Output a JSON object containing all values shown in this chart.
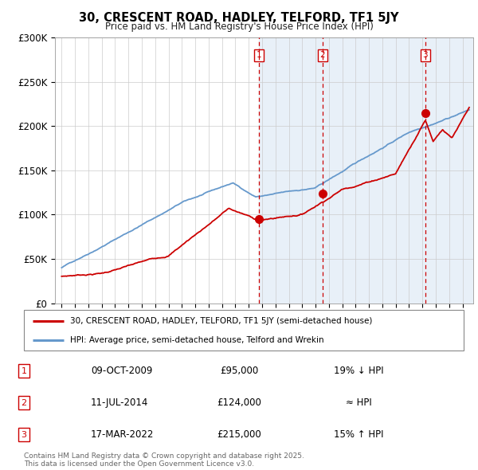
{
  "title": "30, CRESCENT ROAD, HADLEY, TELFORD, TF1 5JY",
  "subtitle": "Price paid vs. HM Land Registry's House Price Index (HPI)",
  "ylim": [
    0,
    300000
  ],
  "yticks": [
    0,
    50000,
    100000,
    150000,
    200000,
    250000,
    300000
  ],
  "ytick_labels": [
    "£0",
    "£50K",
    "£100K",
    "£150K",
    "£200K",
    "£250K",
    "£300K"
  ],
  "sale_dates_num": [
    2009.77,
    2014.53,
    2022.21
  ],
  "sale_prices": [
    95000,
    124000,
    215000
  ],
  "sale_labels": [
    "1",
    "2",
    "3"
  ],
  "sale_info": [
    {
      "num": "1",
      "date": "09-OCT-2009",
      "price": "£95,000",
      "hpi": "19% ↓ HPI"
    },
    {
      "num": "2",
      "date": "11-JUL-2014",
      "price": "£124,000",
      "hpi": "≈ HPI"
    },
    {
      "num": "3",
      "date": "17-MAR-2022",
      "price": "£215,000",
      "hpi": "15% ↑ HPI"
    }
  ],
  "legend_entries": [
    {
      "label": "30, CRESCENT ROAD, HADLEY, TELFORD, TF1 5JY (semi-detached house)",
      "color": "#cc0000"
    },
    {
      "label": "HPI: Average price, semi-detached house, Telford and Wrekin",
      "color": "#6699cc"
    }
  ],
  "footnote": "Contains HM Land Registry data © Crown copyright and database right 2025.\nThis data is licensed under the Open Government Licence v3.0.",
  "background_color": "#ffffff",
  "grid_color": "#cccccc",
  "shade_color": "#ddeeff",
  "hpi_line_color": "#6699cc",
  "actual_line_color": "#cc0000",
  "xmin": 1994.5,
  "xmax": 2025.8
}
